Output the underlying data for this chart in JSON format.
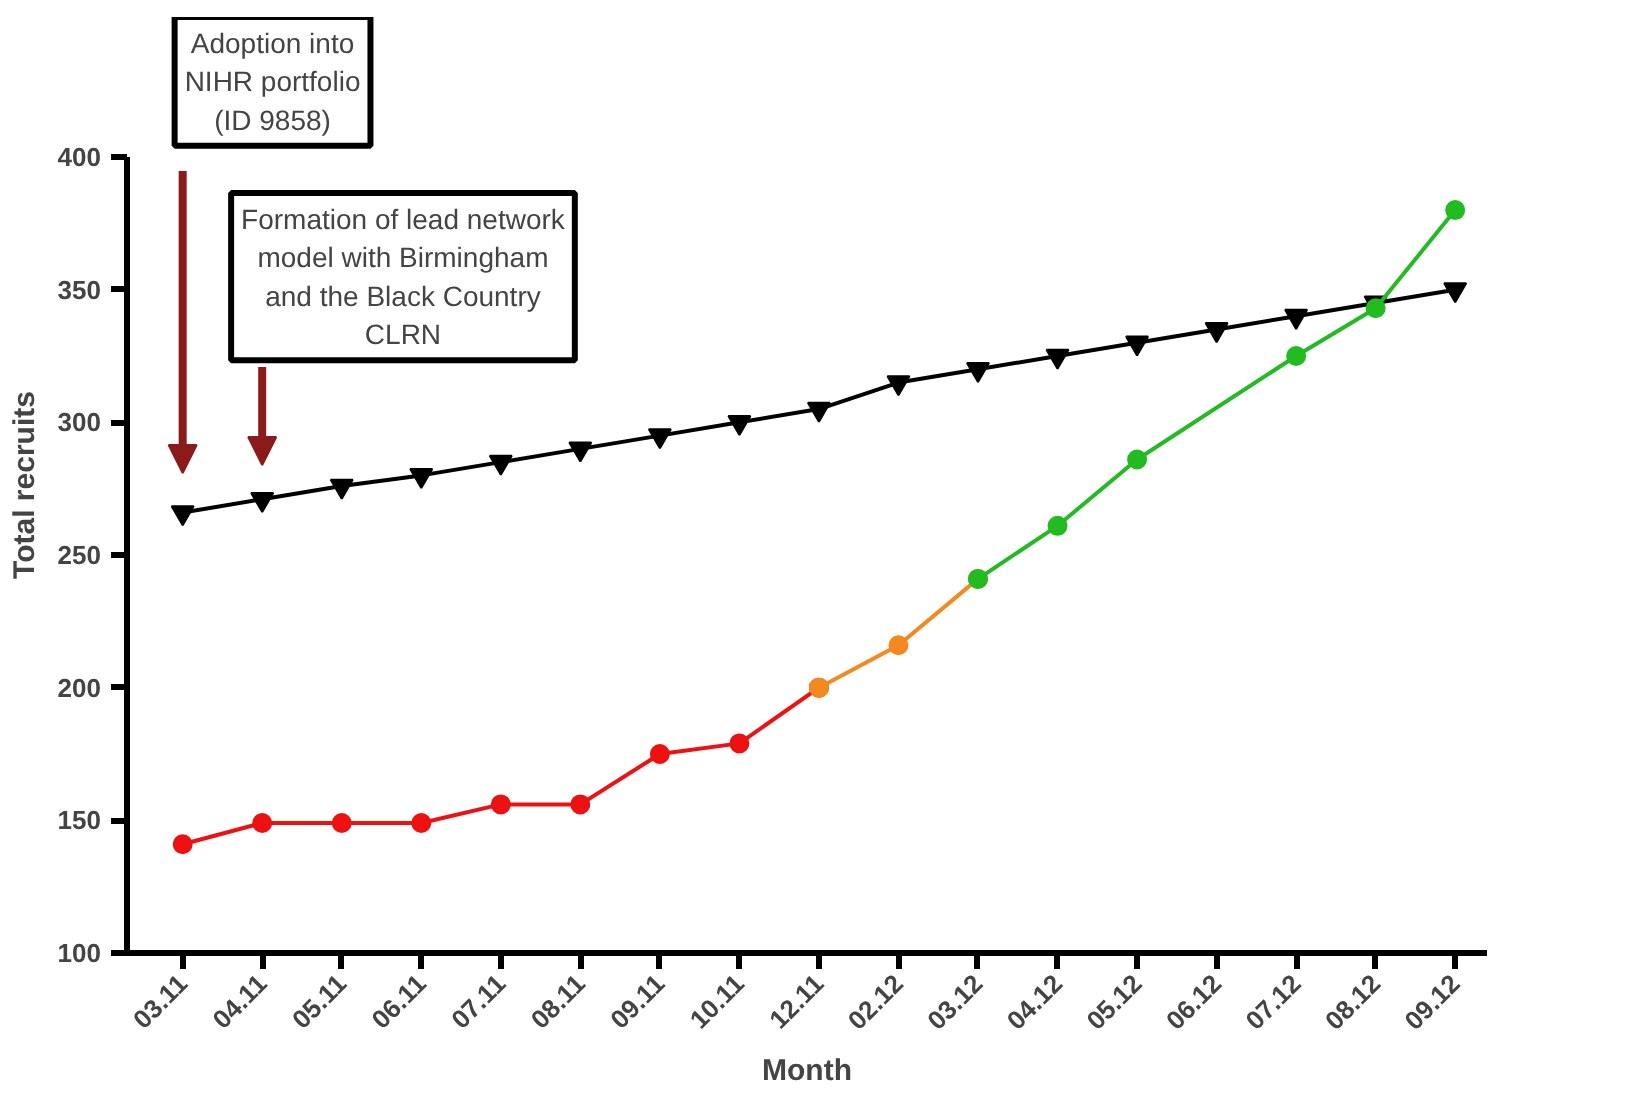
{
  "chart_data": {
    "type": "line",
    "xlabel": "Month",
    "ylabel": "Total recruits",
    "categories": [
      "03.11",
      "04.11",
      "05.11",
      "06.11",
      "07.11",
      "08.11",
      "09.11",
      "10.11",
      "12.11",
      "02.12",
      "03.12",
      "04.12",
      "05.12",
      "06.12",
      "07.12",
      "08.12",
      "09.12"
    ],
    "series": [
      {
        "color": "#000000",
        "marker": "triangle",
        "values": [
          266,
          271,
          276,
          280,
          285,
          290,
          295,
          300,
          305,
          315,
          320,
          325,
          330,
          335,
          340,
          345,
          350
        ]
      },
      {
        "color": "#ee1111",
        "marker": "circle",
        "x": [
          "03.11",
          "04.11",
          "05.11",
          "06.11",
          "07.11",
          "08.11",
          "09.11",
          "10.11",
          "12.11"
        ],
        "values": [
          141,
          149,
          149,
          149,
          156,
          156,
          175,
          179,
          200
        ]
      },
      {
        "color": "#f4891f",
        "marker": "circle",
        "x": [
          "12.11",
          "02.12",
          "03.12"
        ],
        "values": [
          200,
          216,
          241
        ]
      },
      {
        "color": "#22bb22",
        "marker": "circle",
        "x": [
          "03.12",
          "04.12",
          "05.12",
          "07.12",
          "08.12",
          "09.12"
        ],
        "values": [
          241,
          261,
          286,
          325,
          343,
          380
        ]
      }
    ],
    "ylim": [
      100,
      400
    ],
    "yticks": [
      100,
      150,
      200,
      250,
      300,
      350,
      400
    ],
    "annotations": [
      "Adoption into\nNIHR portfolio\n(ID 9858)",
      "Formation of lead network\nmodel with Birmingham\nand the Black Country\nCLRN"
    ]
  }
}
